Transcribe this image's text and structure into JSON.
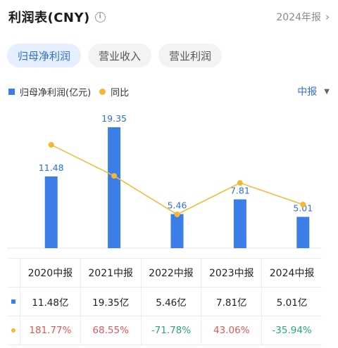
{
  "header": {
    "title": "利润表(CNY)",
    "period": "2024年报"
  },
  "tabs": [
    {
      "label": "归母净利润",
      "active": true
    },
    {
      "label": "营业收入",
      "active": false
    },
    {
      "label": "营业利润",
      "active": false
    }
  ],
  "legend": {
    "bar_label": "归母净利润(亿元)",
    "line_label": "同比",
    "period_select": "中报"
  },
  "colors": {
    "bar": "#3b7ee8",
    "line": "#f5b731",
    "positive": "#e25656",
    "negative": "#2aa873",
    "accent": "#2e6fd9"
  },
  "chart_data": {
    "type": "bar",
    "categories": [
      "2020中报",
      "2021中报",
      "2022中报",
      "2023中报",
      "2024中报"
    ],
    "series": [
      {
        "name": "归母净利润(亿元)",
        "type": "bar",
        "values": [
          11.48,
          19.35,
          5.46,
          7.81,
          5.01
        ],
        "labels": [
          "11.48",
          "19.35",
          "5.46",
          "7.81",
          "5.01"
        ]
      },
      {
        "name": "同比",
        "type": "line",
        "values": [
          181.77,
          68.55,
          -71.78,
          43.06,
          -35.94
        ]
      }
    ],
    "grid": false
  },
  "table": {
    "headers": [
      "2020中报",
      "2021中报",
      "2022中报",
      "2023中报",
      "2024中报"
    ],
    "profit": [
      "11.48亿",
      "19.35亿",
      "5.46亿",
      "7.81亿",
      "5.01亿"
    ],
    "yoy": [
      "181.77%",
      "68.55%",
      "-71.78%",
      "43.06%",
      "-35.94%"
    ]
  }
}
